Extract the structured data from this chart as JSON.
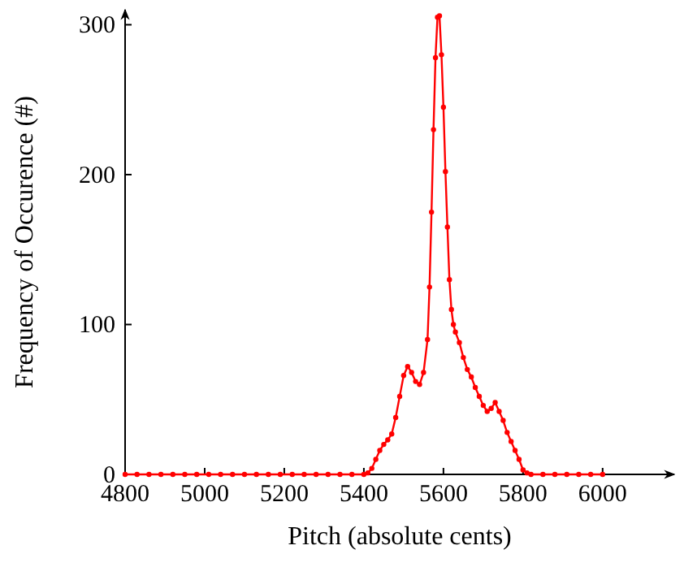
{
  "chart_data": {
    "type": "line",
    "xlabel": "Pitch (absolute cents)",
    "ylabel": "Frequency of Occurence (#)",
    "xlim": [
      4800,
      6180
    ],
    "ylim": [
      0,
      310
    ],
    "xticks": [
      4800,
      5000,
      5200,
      5400,
      5600,
      5800,
      6000
    ],
    "yticks": [
      0,
      100,
      200,
      300
    ],
    "grid": false,
    "marker": "circle",
    "line_style": "solid",
    "series": [
      {
        "color": "#ff0000",
        "x": [
          4800,
          4830,
          4860,
          4890,
          4920,
          4950,
          4980,
          5010,
          5040,
          5070,
          5100,
          5130,
          5160,
          5190,
          5220,
          5250,
          5280,
          5310,
          5340,
          5370,
          5400,
          5410,
          5420,
          5430,
          5440,
          5450,
          5460,
          5470,
          5480,
          5490,
          5500,
          5510,
          5520,
          5530,
          5540,
          5550,
          5560,
          5565,
          5570,
          5575,
          5580,
          5585,
          5590,
          5595,
          5600,
          5605,
          5610,
          5615,
          5620,
          5625,
          5630,
          5640,
          5650,
          5660,
          5670,
          5680,
          5690,
          5700,
          5710,
          5720,
          5730,
          5740,
          5750,
          5760,
          5770,
          5780,
          5790,
          5800,
          5810,
          5820,
          5850,
          5880,
          5910,
          5940,
          5970,
          6000
        ],
        "values": [
          0,
          0,
          0,
          0,
          0,
          0,
          0,
          0,
          0,
          0,
          0,
          0,
          0,
          0,
          0,
          0,
          0,
          0,
          0,
          0,
          0,
          1,
          4,
          10,
          16,
          20,
          23,
          27,
          38,
          52,
          66,
          72,
          68,
          62,
          60,
          68,
          90,
          125,
          175,
          230,
          278,
          305,
          306,
          280,
          245,
          202,
          165,
          130,
          110,
          100,
          95,
          88,
          78,
          70,
          65,
          58,
          52,
          46,
          42,
          44,
          48,
          42,
          36,
          28,
          22,
          16,
          10,
          3,
          1,
          0,
          0,
          0,
          0,
          0,
          0,
          0
        ]
      }
    ]
  }
}
